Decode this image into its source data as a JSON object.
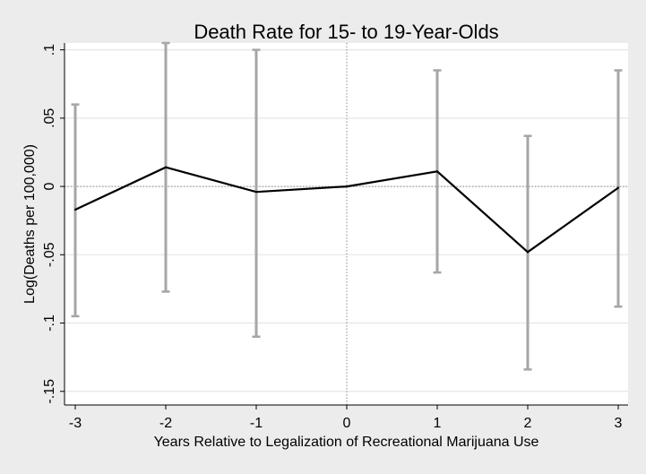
{
  "chart_data": {
    "type": "line",
    "title": "Death Rate for 15- to 19-Year-Olds",
    "xlabel": "Years Relative to Legalization of Recreational Marijuana Use",
    "ylabel": "Log(Deaths per 100,000)",
    "xlim": [
      -3,
      3
    ],
    "ylim": [
      -0.16,
      0.105
    ],
    "x_ticks": [
      -3,
      -2,
      -1,
      0,
      1,
      2,
      3
    ],
    "x_tick_labels": [
      "-3",
      "-2",
      "-1",
      "0",
      "1",
      "2",
      "3"
    ],
    "y_ticks": [
      0.1,
      0.05,
      0,
      -0.05,
      -0.1,
      -0.15
    ],
    "y_tick_labels": [
      ".1",
      ".05",
      "0",
      "-.05",
      "-.1",
      "-.15"
    ],
    "grid": true,
    "reference_lines": {
      "horizontal_y": 0,
      "vertical_x": 0
    },
    "series": [
      {
        "x": [
          -3,
          -2,
          -1,
          0,
          1,
          2,
          3
        ],
        "values": [
          -0.017,
          0.014,
          -0.004,
          0.0,
          0.011,
          -0.048,
          -0.001
        ],
        "ci_lower": [
          -0.095,
          -0.077,
          -0.11,
          0.0,
          -0.063,
          -0.134,
          -0.088
        ],
        "ci_upper": [
          0.06,
          0.105,
          0.1,
          0.0,
          0.085,
          0.037,
          0.085
        ],
        "color": "#000000",
        "ci_color": "#a6a6a6"
      }
    ],
    "colors": {
      "background": "#ececec",
      "plot_background": "#ffffff",
      "grid": "#e6e6e6"
    }
  }
}
